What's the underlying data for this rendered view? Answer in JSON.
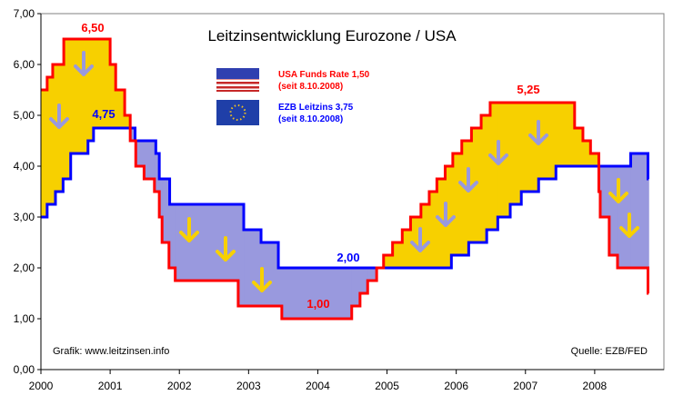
{
  "chart_data": {
    "type": "line",
    "title": "Leitzinsentwicklung Eurozone / USA",
    "xlabel": "",
    "ylabel": "",
    "xlim": [
      2000,
      2009
    ],
    "ylim": [
      0,
      7
    ],
    "x_ticks": [
      "2000",
      "2001",
      "2002",
      "2003",
      "2004",
      "2005",
      "2006",
      "2007",
      "2008"
    ],
    "y_ticks": [
      "0,00",
      "1,00",
      "2,00",
      "3,00",
      "4,00",
      "5,00",
      "6,00",
      "7,00"
    ],
    "grid": false,
    "series": [
      {
        "name": "USA Funds Rate",
        "color": "#ff0000",
        "steps": [
          [
            2000.0,
            5.5
          ],
          [
            2000.09,
            5.75
          ],
          [
            2000.17,
            6.0
          ],
          [
            2000.33,
            6.5
          ],
          [
            2001.0,
            6.0
          ],
          [
            2001.08,
            5.5
          ],
          [
            2001.21,
            5.0
          ],
          [
            2001.29,
            4.5
          ],
          [
            2001.37,
            4.0
          ],
          [
            2001.49,
            3.75
          ],
          [
            2001.64,
            3.5
          ],
          [
            2001.71,
            3.0
          ],
          [
            2001.75,
            2.5
          ],
          [
            2001.85,
            2.0
          ],
          [
            2001.94,
            1.75
          ],
          [
            2002.85,
            1.25
          ],
          [
            2003.48,
            1.0
          ],
          [
            2004.49,
            1.25
          ],
          [
            2004.61,
            1.5
          ],
          [
            2004.72,
            1.75
          ],
          [
            2004.85,
            2.0
          ],
          [
            2004.95,
            2.25
          ],
          [
            2005.08,
            2.5
          ],
          [
            2005.22,
            2.75
          ],
          [
            2005.34,
            3.0
          ],
          [
            2005.49,
            3.25
          ],
          [
            2005.61,
            3.5
          ],
          [
            2005.72,
            3.75
          ],
          [
            2005.84,
            4.0
          ],
          [
            2005.95,
            4.25
          ],
          [
            2006.08,
            4.5
          ],
          [
            2006.22,
            4.75
          ],
          [
            2006.36,
            5.0
          ],
          [
            2006.49,
            5.25
          ],
          [
            2007.71,
            4.75
          ],
          [
            2007.83,
            4.5
          ],
          [
            2007.94,
            4.25
          ],
          [
            2008.06,
            3.5
          ],
          [
            2008.08,
            3.0
          ],
          [
            2008.21,
            2.25
          ],
          [
            2008.33,
            2.0
          ],
          [
            2008.77,
            1.5
          ]
        ],
        "end": 2008.78
      },
      {
        "name": "EZB Leitzins",
        "color": "#0000ff",
        "steps": [
          [
            2000.0,
            3.0
          ],
          [
            2000.09,
            3.25
          ],
          [
            2000.21,
            3.5
          ],
          [
            2000.32,
            3.75
          ],
          [
            2000.43,
            4.25
          ],
          [
            2000.68,
            4.5
          ],
          [
            2000.76,
            4.75
          ],
          [
            2001.36,
            4.5
          ],
          [
            2001.66,
            4.25
          ],
          [
            2001.71,
            3.75
          ],
          [
            2001.86,
            3.25
          ],
          [
            2002.93,
            2.75
          ],
          [
            2003.18,
            2.5
          ],
          [
            2003.43,
            2.0
          ],
          [
            2005.93,
            2.25
          ],
          [
            2006.18,
            2.5
          ],
          [
            2006.44,
            2.75
          ],
          [
            2006.6,
            3.0
          ],
          [
            2006.78,
            3.25
          ],
          [
            2006.94,
            3.5
          ],
          [
            2007.19,
            3.75
          ],
          [
            2007.44,
            4.0
          ],
          [
            2008.52,
            4.25
          ],
          [
            2008.77,
            3.75
          ]
        ],
        "end": 2008.78
      }
    ],
    "annotations": {
      "usa_peak": "6,50",
      "ezb_peak": "4,75",
      "ezb_low": "2,00",
      "usa_low": "1,00",
      "usa_peak2": "5,25",
      "credit": "Grafik: www.leitzinsen.info",
      "source": "Quelle: EZB/FED"
    },
    "legend": {
      "placement": "top-center",
      "usa_line1": "USA Funds Rate 1,50",
      "usa_line2": "(seit 8.10.2008)",
      "ezb_line1": "EZB Leitzins 3,75",
      "ezb_line2": "(seit 8.10.2008)"
    },
    "colors": {
      "usa_above": "#f7d000",
      "ezb_above": "#9999de"
    }
  }
}
